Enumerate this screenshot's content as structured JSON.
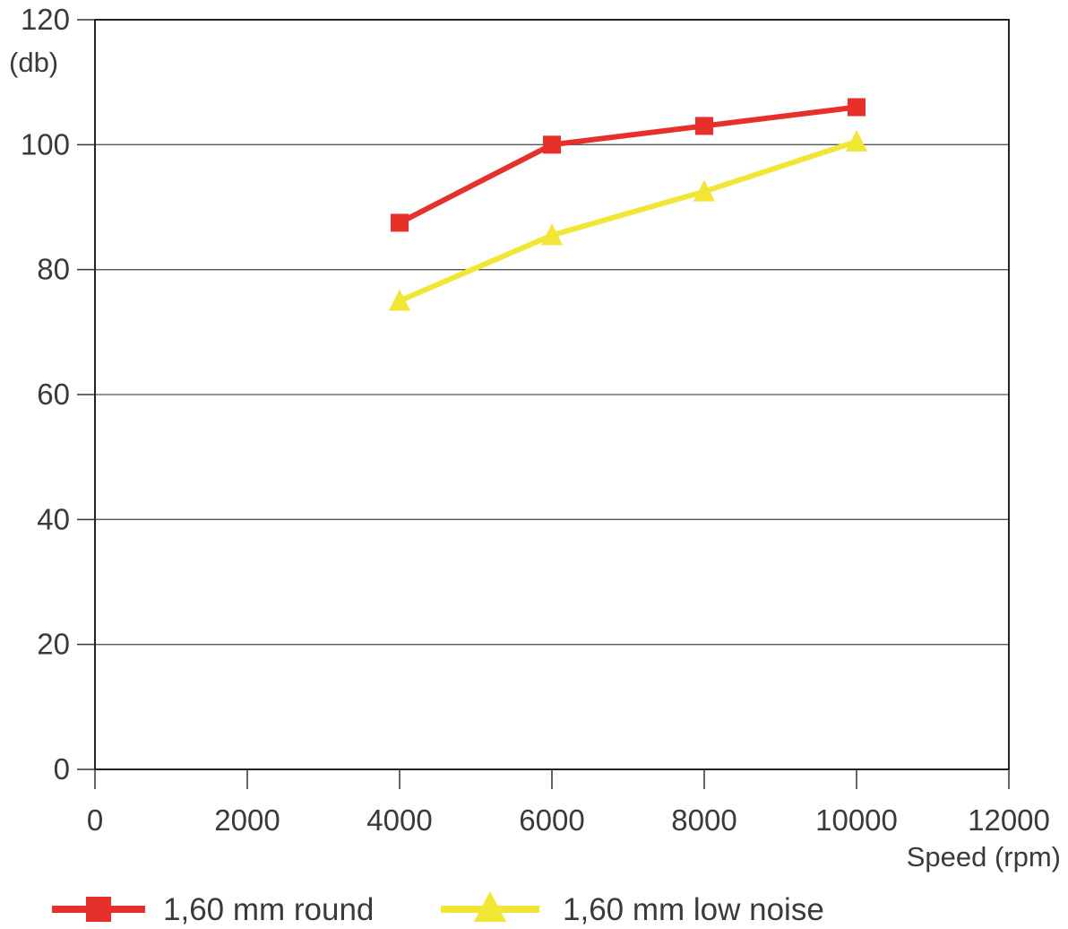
{
  "chart_data": {
    "type": "line",
    "xlabel": "Speed (rpm)",
    "ylabel": "(db)",
    "xlim": [
      0,
      12000
    ],
    "ylim": [
      0,
      120
    ],
    "x_ticks": [
      0,
      2000,
      4000,
      6000,
      8000,
      10000,
      12000
    ],
    "y_ticks": [
      0,
      20,
      40,
      60,
      80,
      100,
      120
    ],
    "x_tick_labels": [
      "0",
      "2000",
      "4000",
      "6000",
      "8000",
      "10000",
      "12000"
    ],
    "y_tick_labels": [
      "0",
      "20",
      "40",
      "60",
      "80",
      "100",
      "120"
    ],
    "grid": "horizontal",
    "legend_position": "bottom",
    "series": [
      {
        "name": "1,60 mm round",
        "color": "#e8302a",
        "marker": "square",
        "x": [
          4000,
          6000,
          8000,
          10000
        ],
        "values": [
          87.5,
          100,
          103,
          106
        ]
      },
      {
        "name": "1,60 mm low noise",
        "color": "#f2e634",
        "marker": "triangle",
        "x": [
          4000,
          6000,
          8000,
          10000
        ],
        "values": [
          75,
          85.5,
          92.5,
          100.5
        ]
      }
    ]
  }
}
